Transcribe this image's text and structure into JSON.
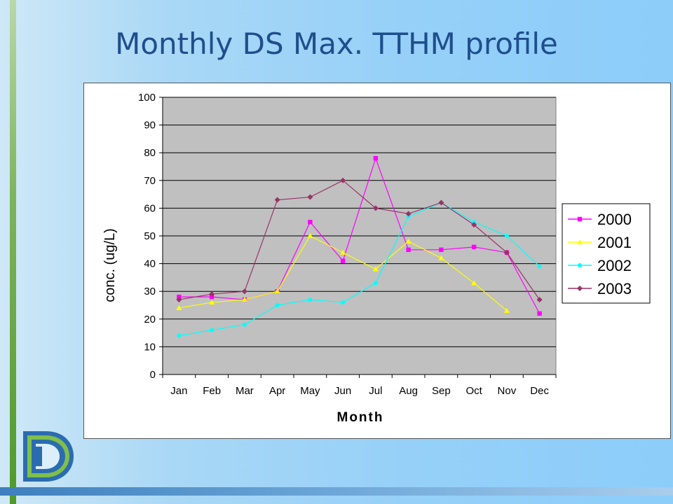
{
  "slide": {
    "title": "Monthly DS Max. TTHM profile"
  },
  "colors": {
    "plot_background": "#c0c0c0",
    "title": "#1f4e8c",
    "series_2000": "#ff00ff",
    "series_2001": "#ffff00",
    "series_2002": "#00ffff",
    "series_2003": "#993366"
  },
  "chart_data": {
    "type": "line",
    "title": "",
    "xlabel": "Month",
    "ylabel": "conc. (ug/L)",
    "ylim": [
      0,
      100
    ],
    "yticks": [
      0,
      10,
      20,
      30,
      40,
      50,
      60,
      70,
      80,
      90,
      100
    ],
    "grid": "horizontal",
    "legend_position": "right",
    "categories": [
      "Jan",
      "Feb",
      "Mar",
      "Apr",
      "May",
      "Jun",
      "Jul",
      "Aug",
      "Sep",
      "Oct",
      "Nov",
      "Dec"
    ],
    "series": [
      {
        "name": "2000",
        "color": "#ff00ff",
        "marker": "square",
        "values": [
          28,
          28,
          27,
          30,
          55,
          41,
          78,
          45,
          45,
          46,
          44,
          22
        ]
      },
      {
        "name": "2001",
        "color": "#ffff00",
        "marker": "triangle",
        "values": [
          24,
          26,
          27,
          30,
          50,
          44,
          38,
          48,
          42,
          33,
          23,
          null
        ]
      },
      {
        "name": "2002",
        "color": "#00ffff",
        "marker": "circle",
        "values": [
          14,
          16,
          18,
          25,
          27,
          26,
          33,
          57,
          62,
          55,
          50,
          39
        ]
      },
      {
        "name": "2003",
        "color": "#993366",
        "marker": "diamond",
        "values": [
          27,
          29,
          30,
          63,
          64,
          70,
          60,
          58,
          62,
          54,
          44,
          27
        ]
      }
    ]
  }
}
